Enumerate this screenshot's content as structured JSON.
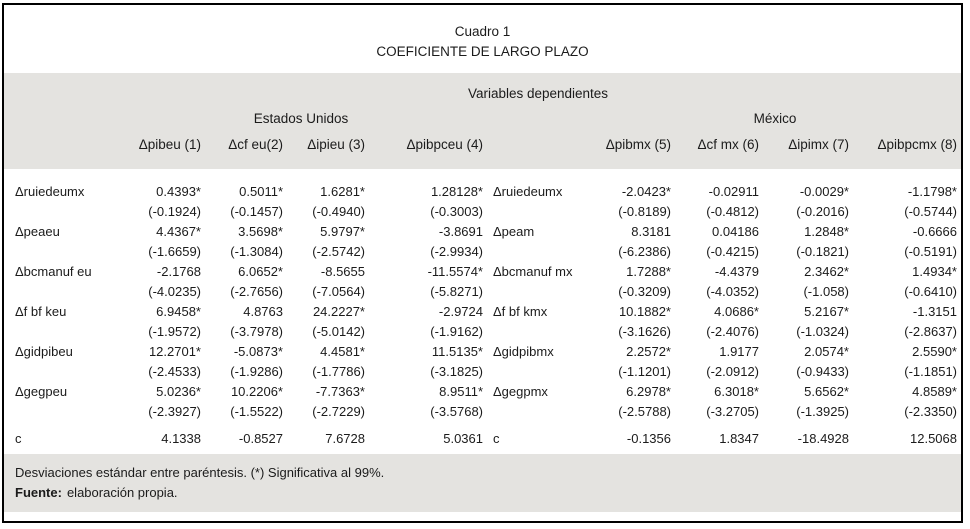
{
  "title": {
    "line1": "Cuadro 1",
    "line2": "COEFICIENTE DE LARGO PLAZO"
  },
  "header": {
    "dependent_vars_label": "Variables dependientes",
    "groups": [
      {
        "label": "Estados Unidos",
        "columns": [
          "Δpibeu (1)",
          "Δcf eu(2)",
          "Δipieu (3)",
          "Δpibpceu (4)"
        ]
      },
      {
        "label": "México",
        "columns": [
          "Δpibmx (5)",
          "Δcf mx (6)",
          "Δipimx (7)",
          "Δpibpcmx (8)"
        ]
      }
    ]
  },
  "left_rows": [
    {
      "label": "Δruiedeumx",
      "coef": [
        "0.4393*",
        "0.5011*",
        "1.6281*",
        "1.28128*"
      ],
      "se": [
        "(-0.1924)",
        "(-0.1457)",
        "(-0.4940)",
        "(-0.3003)"
      ]
    },
    {
      "label": "Δpeaeu",
      "coef": [
        "4.4367*",
        "3.5698*",
        "5.9797*",
        "-3.8691"
      ],
      "se": [
        "(-1.6659)",
        "(-1.3084)",
        "(-2.5742)",
        "(-2.9934)"
      ]
    },
    {
      "label": "Δbcmanuf eu",
      "coef": [
        "-2.1768",
        "6.0652*",
        "-8.5655",
        "-11.5574*"
      ],
      "se": [
        "(-4.0235)",
        "(-2.7656)",
        "(-7.0564)",
        "(-5.8271)"
      ]
    },
    {
      "label": "Δf bf keu",
      "coef": [
        "6.9458*",
        "4.8763",
        "24.2227*",
        "-2.9724"
      ],
      "se": [
        "(-1.9572)",
        "(-3.7978)",
        "(-5.0142)",
        "(-1.9162)"
      ]
    },
    {
      "label": "Δgidpibeu",
      "coef": [
        "12.2701*",
        "-5.0873*",
        "4.4581*",
        "11.5135*"
      ],
      "se": [
        "(-2.4533)",
        "(-1.9286)",
        "(-1.7786)",
        "(-3.1825)"
      ]
    },
    {
      "label": "Δgegpeu",
      "coef": [
        "5.0236*",
        "10.2206*",
        "-7.7363*",
        "8.9511*"
      ],
      "se": [
        "(-2.3927)",
        "(-1.5522)",
        "(-2.7229)",
        "(-3.5768)"
      ]
    },
    {
      "label": "c",
      "coef": [
        "4.1338",
        "-0.8527",
        "7.6728",
        "5.0361"
      ],
      "se": null
    }
  ],
  "right_rows": [
    {
      "label": "Δruiedeumx",
      "coef": [
        "-2.0423*",
        "-0.02911",
        "-0.0029*",
        "-1.1798*"
      ],
      "se": [
        "(-0.8189)",
        "(-0.4812)",
        "(-0.2016)",
        "(-0.5744)"
      ]
    },
    {
      "label": "Δpeam",
      "coef": [
        "8.3181",
        "0.04186",
        "1.2848*",
        "-0.6666"
      ],
      "se": [
        "(-6.2386)",
        "(-0.4215)",
        "(-0.1821)",
        "(-0.5191)"
      ]
    },
    {
      "label": "Δbcmanuf mx",
      "coef": [
        "1.7288*",
        "-4.4379",
        "2.3462*",
        "1.4934*"
      ],
      "se": [
        "(-0.3209)",
        "(-4.0352)",
        "(-1.058)",
        "(-0.6410)"
      ]
    },
    {
      "label": "Δf bf kmx",
      "coef": [
        "10.1882*",
        "4.0686*",
        "5.2167*",
        "-1.3151"
      ],
      "se": [
        "(-3.1626)",
        "(-2.4076)",
        "(-1.0324)",
        "(-2.8637)"
      ]
    },
    {
      "label": "Δgidpibmx",
      "coef": [
        "2.2572*",
        "1.9177",
        "2.0574*",
        "2.5590*"
      ],
      "se": [
        "(-1.1201)",
        "(-2.0912)",
        "(-0.9433)",
        "(-1.1851)"
      ]
    },
    {
      "label": "Δgegpmx",
      "coef": [
        "6.2978*",
        "6.3018*",
        "5.6562*",
        "4.8589*"
      ],
      "se": [
        "(-2.5788)",
        "(-3.2705)",
        "(-1.3925)",
        "(-2.3350)"
      ]
    },
    {
      "label": "c",
      "coef": [
        "-0.1356",
        "1.8347",
        "-18.4928",
        "12.5068"
      ],
      "se": null
    }
  ],
  "footer": {
    "note": "Desviaciones estándar entre paréntesis. (*) Significativa al 99%.",
    "source_label": "Fuente:",
    "source_text": "elaboración propia."
  },
  "colors": {
    "band_bg": "#e4e3e0",
    "border": "#000000",
    "text": "#1b1b1b"
  }
}
